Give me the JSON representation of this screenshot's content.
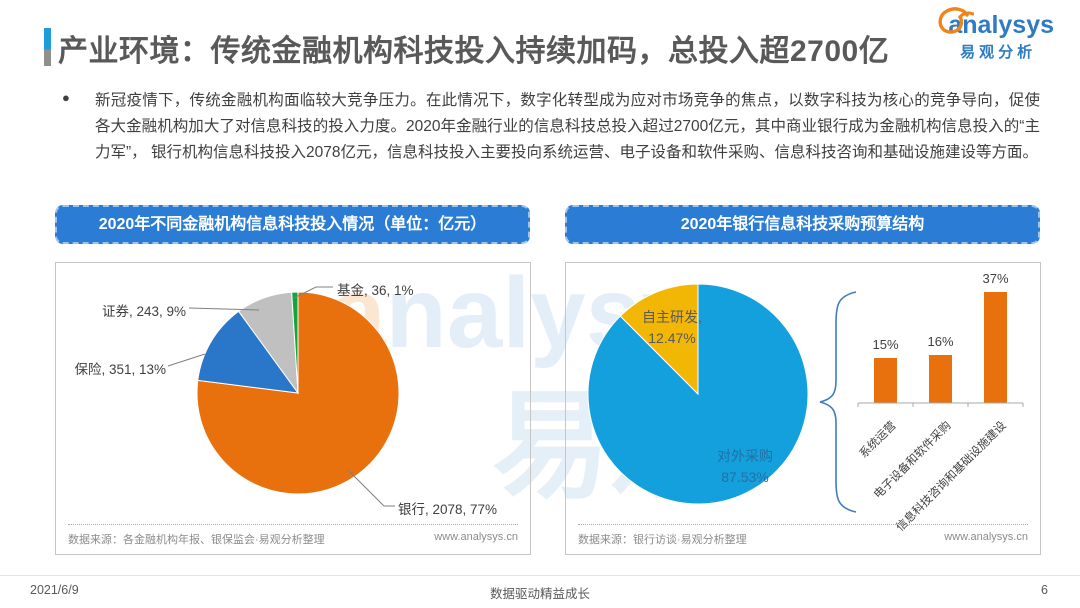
{
  "header": {
    "title": "产业环境：传统金融机构科技投入持续加码，总投入超2700亿",
    "logo_en": "analysys",
    "logo_cn": "易观分析"
  },
  "summary": {
    "bullet": "●",
    "text": "新冠疫情下，传统金融机构面临较大竞争压力。在此情况下，数字化转型成为应对市场竞争的焦点，以数字科技为核心的竞争导向，促使各大金融机构加大了对信息科技的投入力度。2020年金融行业的信息科技总投入超过2700亿元，其中商业银行成为金融机构信息投入的“主力军”， 银行机构信息科技投入2078亿元，信息科技投入主要投向系统运营、电子设备和软件采购、信息科技咨询和基础设施建设等方面。"
  },
  "watermark": {
    "en_first": "a",
    "en_rest": "nalysys",
    "cn": "易观"
  },
  "left_panel": {
    "header": "2020年不同金融机构信息科技投入情况（单位：亿元）",
    "source": "数据来源：各金融机构年报、银保监会·易观分析整理",
    "website": "www.analysys.cn"
  },
  "right_panel": {
    "header": "2020年银行信息科技采购预算结构",
    "source": "数据来源：银行访谈·易观分析整理",
    "website": "www.analysys.cn"
  },
  "footer": {
    "date": "2021/6/9",
    "slogan": "数据驱动精益成长",
    "page_number": "6"
  },
  "chart_data": [
    {
      "type": "pie",
      "title": "2020年不同金融机构信息科技投入情况（单位：亿元）",
      "unit": "亿元",
      "start_angle_deg": 0,
      "clockwise": true,
      "slices": [
        {
          "label": "银行",
          "value": 2078,
          "percent": 77,
          "display": "银行, 2078, 77%",
          "color": "#E8710D"
        },
        {
          "label": "保险",
          "value": 351,
          "percent": 13,
          "display": "保险, 351, 13%",
          "color": "#2A77C9"
        },
        {
          "label": "证券",
          "value": 243,
          "percent": 9,
          "display": "证券, 243, 9%",
          "color": "#C0C0C0"
        },
        {
          "label": "基金",
          "value": 36,
          "percent": 1,
          "display": "基金, 36, 1%",
          "color": "#12A53E"
        }
      ]
    },
    {
      "type": "pie",
      "title": "2020年银行信息科技采购预算结构",
      "start_angle_deg": 0,
      "clockwise": true,
      "slices": [
        {
          "label": "对外采购",
          "percent": 87.53,
          "display_label": "对外采购",
          "display_value": "87.53%",
          "color": "#14A0DC"
        },
        {
          "label": "自主研发",
          "percent": 12.47,
          "display_label": "自主研发,",
          "display_value": "12.47%",
          "color": "#F2B705"
        }
      ]
    },
    {
      "type": "bar",
      "title": "银行对外采购预算投向",
      "categories": [
        "系统运营",
        "电子设备和软件采购",
        "信息科技咨询和基础设施建设"
      ],
      "values": [
        15,
        16,
        37
      ],
      "value_labels": [
        "15%",
        "16%",
        "37%"
      ],
      "bar_color": "#E8710D",
      "ylim": [
        0,
        40
      ]
    }
  ]
}
